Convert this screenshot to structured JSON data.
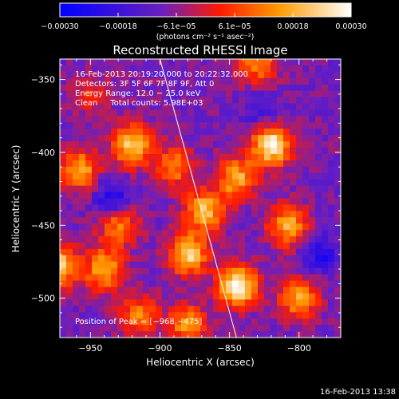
{
  "chart_data": {
    "type": "heatmap",
    "title": "Reconstructed RHESSI Image",
    "xlabel": "Heliocentric X (arcsec)",
    "ylabel": "Heliocentric Y (arcsec)",
    "xlim": [
      -972,
      -770
    ],
    "ylim": [
      -527,
      -336
    ],
    "x_ticks": [
      -950,
      -900,
      -850,
      -800
    ],
    "y_ticks": [
      -350,
      -400,
      -450,
      -500
    ],
    "x_tick_labels": [
      "−950",
      "−900",
      "−850",
      "−800"
    ],
    "y_tick_labels": [
      "−350",
      "−400",
      "−450",
      "−500"
    ],
    "colorbar": {
      "range": [
        -0.0003,
        0.0003
      ],
      "tick_labels": [
        "−0.00030",
        "−0.00018",
        "−6.1e−05",
        "6.1e−05",
        "0.00018",
        "0.00030"
      ],
      "unit_label": "(photons cm⁻² s⁻¹ asec⁻²)",
      "colors": [
        "#0000ff",
        "#6a1fc0",
        "#ff1a00",
        "#ff9a00",
        "#ffffff"
      ]
    },
    "annotations": {
      "time_range": "16-Feb-2013 20:19:20.000 to 20:22:32.000",
      "detectors": "Detectors: 3F 5F 6F 7F 8F 9F, Att 0",
      "energy": "Energy Range: 12.0 − 25.0 keV",
      "clean": "Clean     Total counts: 5.98E+03",
      "peak": "Position of Peak = [−968,−475]"
    },
    "limb_line": [
      [
        -900,
        -336
      ],
      [
        -845,
        -527
      ]
    ],
    "bright_sources": [
      {
        "x": -950,
        "y": -360,
        "amp": 0.3
      },
      {
        "x": -830,
        "y": -340,
        "amp": 0.55
      },
      {
        "x": -958,
        "y": -412,
        "amp": 0.7
      },
      {
        "x": -920,
        "y": -395,
        "amp": 0.8
      },
      {
        "x": -890,
        "y": -410,
        "amp": 0.55
      },
      {
        "x": -820,
        "y": -395,
        "amp": 1.0
      },
      {
        "x": -845,
        "y": -418,
        "amp": 0.7
      },
      {
        "x": -930,
        "y": -450,
        "amp": 0.55
      },
      {
        "x": -868,
        "y": -440,
        "amp": 0.75
      },
      {
        "x": -808,
        "y": -450,
        "amp": 0.7
      },
      {
        "x": -975,
        "y": -478,
        "amp": 0.95
      },
      {
        "x": -940,
        "y": -480,
        "amp": 0.7
      },
      {
        "x": -880,
        "y": -470,
        "amp": 0.85
      },
      {
        "x": -844,
        "y": -492,
        "amp": 1.0
      },
      {
        "x": -800,
        "y": -500,
        "amp": 0.65
      },
      {
        "x": -915,
        "y": -512,
        "amp": 0.55
      },
      {
        "x": -880,
        "y": -518,
        "amp": 0.6
      }
    ],
    "dark_sources": [
      {
        "x": -935,
        "y": -432,
        "amp": 0.7
      },
      {
        "x": -785,
        "y": -470,
        "amp": 0.6
      },
      {
        "x": -828,
        "y": -372,
        "amp": 0.4
      }
    ]
  },
  "footer": {
    "timestamp": "16-Feb-2013 13:38"
  }
}
